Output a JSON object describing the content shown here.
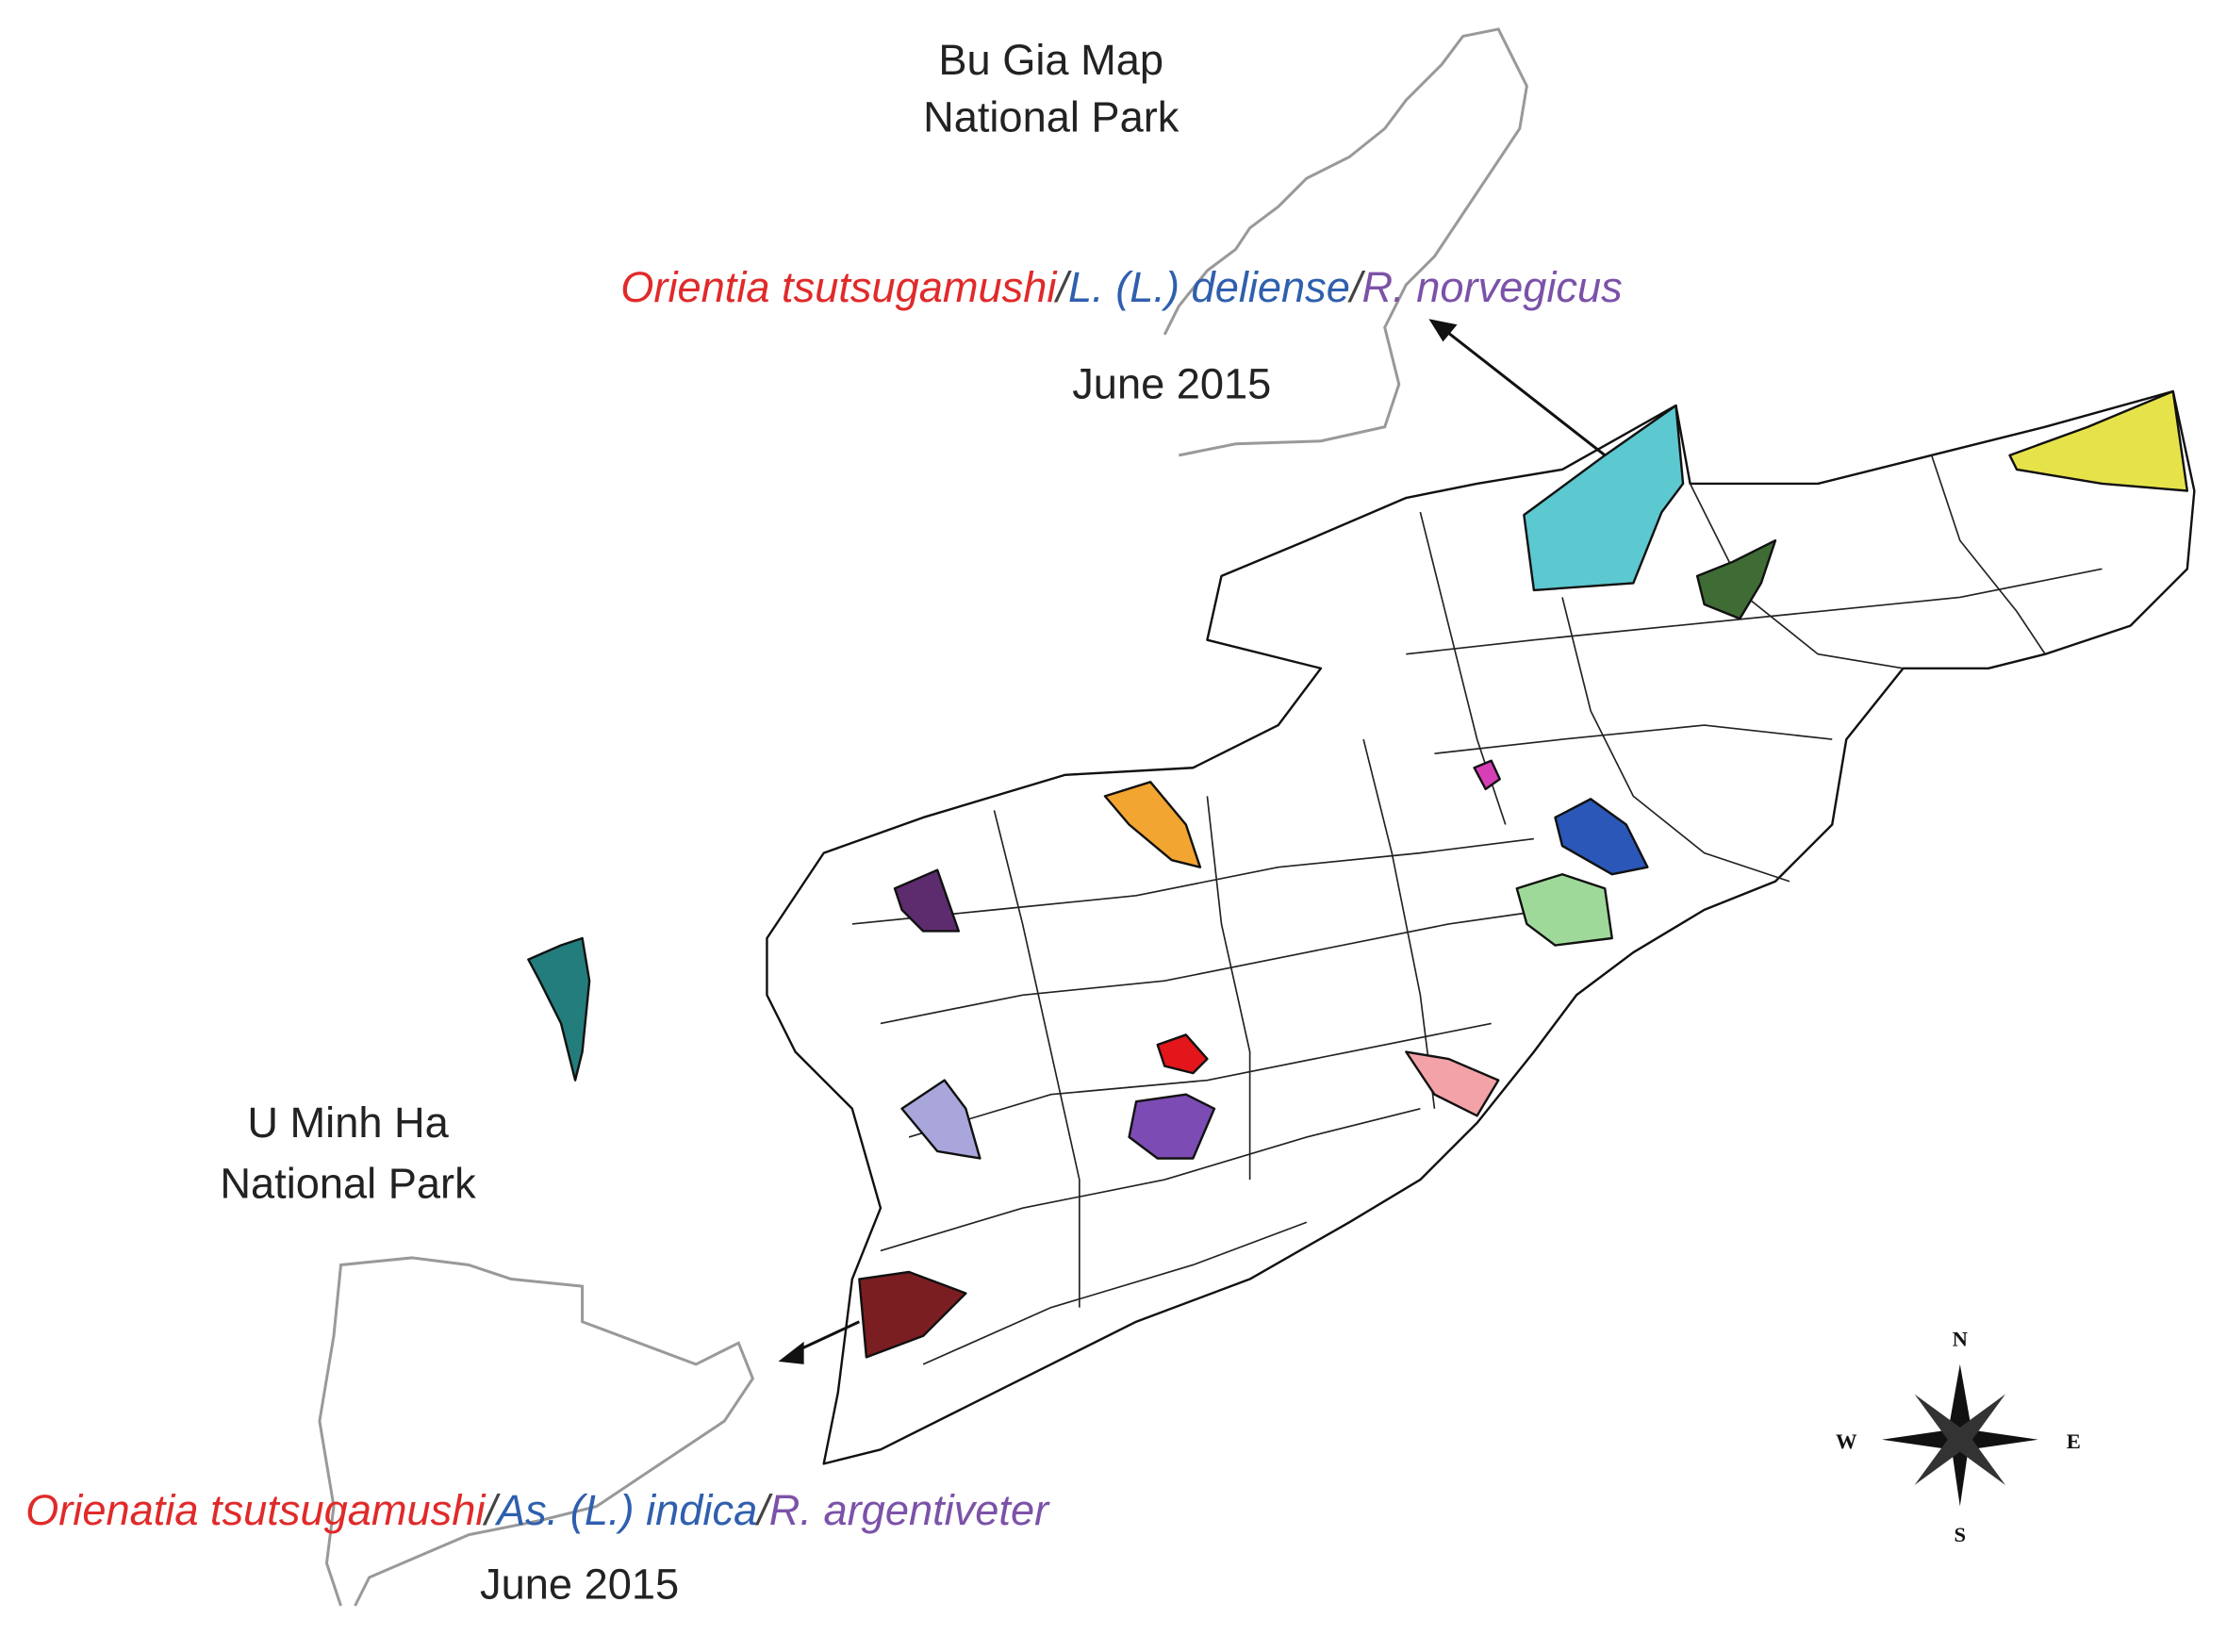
{
  "top_park": {
    "name": [
      "Bu Gia Map",
      "National Park"
    ],
    "findings": [
      {
        "text": "Orientia tsutsugamushi",
        "color": "#e02a2a"
      },
      {
        "text": "/",
        "color": "#444444"
      },
      {
        "text": "L. (L.) deliense",
        "color": "#2f5fae"
      },
      {
        "text": "/",
        "color": "#444444"
      },
      {
        "text": "R. norvegicus",
        "color": "#7b52a8"
      }
    ],
    "date": "June 2015"
  },
  "bottom_park": {
    "name": [
      "U Minh Ha",
      "National Park"
    ],
    "findings": [
      {
        "text": "Orienatia tsutsugamushi",
        "color": "#e02a2a"
      },
      {
        "text": "/",
        "color": "#444444"
      },
      {
        "text": "As. (L.) indica",
        "color": "#2f5fae"
      },
      {
        "text": "/",
        "color": "#444444"
      },
      {
        "text": "R. argentiveter",
        "color": "#7b52a8"
      }
    ],
    "date": "June 2015"
  },
  "compass": {
    "north": "N",
    "east": "E",
    "south": "S",
    "west": "W"
  }
}
